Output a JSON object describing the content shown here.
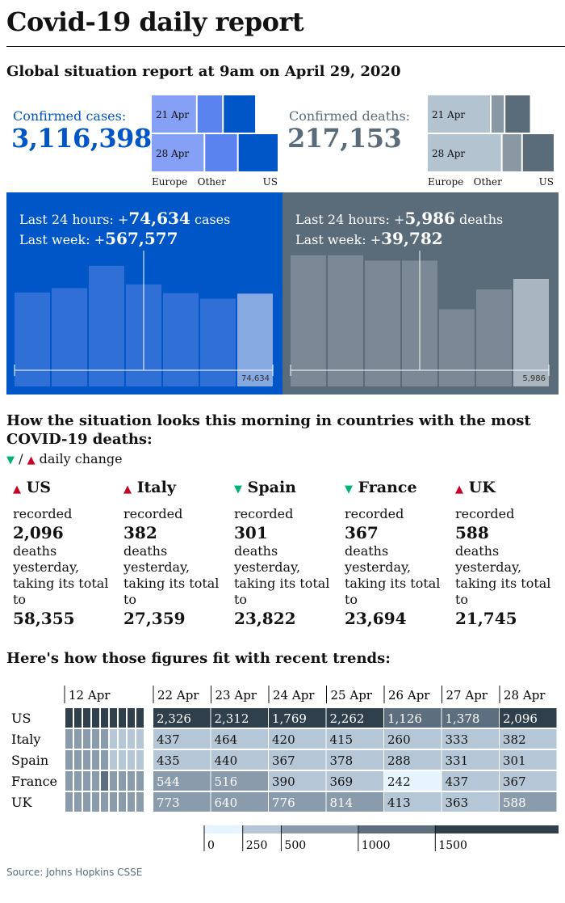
{
  "title": "Covid-19 daily report",
  "subtitle": "Global situation report at 9am on April 29, 2020",
  "cases_summary": {
    "label": "Confirmed cases:",
    "value": "3,116,398",
    "color": "#0056c7"
  },
  "deaths_summary": {
    "label": "Confirmed deaths:",
    "value": "217,153",
    "color": "#5a6c79"
  },
  "cases_mini": {
    "rows": [
      "21 Apr",
      "28 Apr"
    ],
    "axis": [
      "Europe",
      "Other",
      "US"
    ]
  },
  "deaths_mini": {
    "rows": [
      "21 Apr",
      "28 Apr"
    ],
    "axis": [
      "Europe",
      "Other",
      "US"
    ]
  },
  "cases_panel": {
    "line1_prefix": "Last 24 hours: +",
    "line1_value": "74,634",
    "line1_suffix": " cases",
    "line2_prefix": "Last week: +",
    "line2_value": "567,577",
    "last_label": "74,634",
    "bg": "#0056c7"
  },
  "deaths_panel": {
    "line1_prefix": "Last 24 hours: +",
    "line1_value": "5,986",
    "line1_suffix": " deaths",
    "line2_prefix": "Last week: +",
    "line2_value": "39,782",
    "last_label": "5,986",
    "bg": "#5a6c79"
  },
  "countries_heading": "How the situation looks this morning in countries with the most COVID-19 deaths:",
  "legend": {
    "down": "▼",
    "sep": " / ",
    "up": "▲",
    "text": " daily change"
  },
  "countries": [
    {
      "arrow": "▲",
      "dir": "up",
      "name": "US",
      "recorded": "recorded",
      "yesterday": "2,096",
      "mid": "deaths yesterday, taking its total to",
      "total": "58,355"
    },
    {
      "arrow": "▲",
      "dir": "up",
      "name": "Italy",
      "recorded": "recorded",
      "yesterday": "382",
      "mid": "deaths yesterday, taking its total to",
      "total": "27,359"
    },
    {
      "arrow": "▼",
      "dir": "down",
      "name": "Spain",
      "recorded": "recorded",
      "yesterday": "301",
      "mid": "deaths yesterday, taking its total to",
      "total": "23,822"
    },
    {
      "arrow": "▼",
      "dir": "down",
      "name": "France",
      "recorded": "recorded",
      "yesterday": "367",
      "mid": "deaths yesterday, taking its total to",
      "total": "23,694"
    },
    {
      "arrow": "▲",
      "dir": "up",
      "name": "UK",
      "recorded": "recorded",
      "yesterday": "588",
      "mid": "deaths yesterday, taking its total to",
      "total": "21,745"
    }
  ],
  "trends_heading": "Here's how those figures fit with recent trends:",
  "source": "Source: Johns Hopkins CSSE",
  "chart_data": [
    {
      "type": "bar",
      "categories": [
        "22 Apr",
        "23 Apr",
        "24 Apr",
        "25 Apr",
        "26 Apr",
        "27 Apr",
        "28 Apr"
      ],
      "values": [
        75500,
        79000,
        97000,
        82000,
        75000,
        70500,
        74634
      ],
      "ylim": [
        0,
        130000
      ],
      "xlabel": "",
      "ylabel": ""
    },
    {
      "type": "bar",
      "categories": [
        "22 Apr",
        "23 Apr",
        "24 Apr",
        "25 Apr",
        "26 Apr",
        "27 Apr",
        "28 Apr"
      ],
      "values": [
        7300,
        7300,
        7000,
        7000,
        4300,
        5400,
        5986
      ],
      "ylim": [
        0,
        9000
      ],
      "xlabel": "",
      "ylabel": ""
    },
    {
      "type": "bar",
      "title": "Confirmed cases:",
      "categories": [
        "21 Apr",
        "28 Apr"
      ],
      "series": [
        {
          "name": "Europe",
          "values": [
            1140000,
            1330000
          ]
        },
        {
          "name": "Other",
          "values": [
            650000,
            830000
          ]
        },
        {
          "name": "US",
          "values": [
            820000,
            1010000
          ]
        }
      ]
    },
    {
      "type": "bar",
      "title": "Confirmed deaths:",
      "categories": [
        "21 Apr",
        "28 Apr"
      ],
      "series": [
        {
          "name": "Europe",
          "values": [
            110000,
            129000
          ]
        },
        {
          "name": "Other",
          "values": [
            24000,
            35000
          ]
        },
        {
          "name": "US",
          "values": [
            45000,
            56000
          ]
        }
      ]
    },
    {
      "type": "heatmap",
      "title": "Here's how those figures fit with recent trends:",
      "rows": [
        "US",
        "Italy",
        "Spain",
        "France",
        "UK"
      ],
      "categories": [
        "22 Apr",
        "23 Apr",
        "24 Apr",
        "25 Apr",
        "26 Apr",
        "27 Apr",
        "28 Apr"
      ],
      "first_label": "12 Apr",
      "values": [
        [
          2326,
          2312,
          1769,
          2262,
          1126,
          1378,
          2096
        ],
        [
          437,
          464,
          420,
          415,
          260,
          333,
          382
        ],
        [
          435,
          440,
          367,
          378,
          288,
          331,
          301
        ],
        [
          544,
          516,
          390,
          369,
          242,
          437,
          367
        ],
        [
          773,
          640,
          776,
          814,
          413,
          363,
          588
        ]
      ],
      "labels": [
        [
          "2,326",
          "2,312",
          "1,769",
          "2,262",
          "1,126",
          "1,378",
          "2,096"
        ],
        [
          "437",
          "464",
          "420",
          "415",
          "260",
          "333",
          "382"
        ],
        [
          "435",
          "440",
          "367",
          "378",
          "288",
          "331",
          "301"
        ],
        [
          "544",
          "516",
          "390",
          "369",
          "242",
          "437",
          "367"
        ],
        [
          "773",
          "640",
          "776",
          "814",
          "413",
          "363",
          "588"
        ]
      ],
      "history": [
        [
          1800,
          1600,
          2200,
          2400,
          2000,
          1900,
          1700,
          1500,
          1800
        ],
        [
          500,
          550,
          600,
          560,
          500,
          480,
          450,
          420,
          430
        ],
        [
          600,
          550,
          620,
          580,
          500,
          450,
          410,
          430,
          420
        ],
        [
          500,
          550,
          650,
          900,
          1300,
          800,
          700,
          600,
          550
        ],
        [
          700,
          730,
          750,
          780,
          820,
          850,
          760,
          740,
          700
        ]
      ],
      "scale_ticks": [
        "0",
        "250",
        "500",
        "1000",
        "1500"
      ],
      "scale_breaks": [
        0,
        250,
        500,
        1000,
        1500
      ]
    }
  ]
}
